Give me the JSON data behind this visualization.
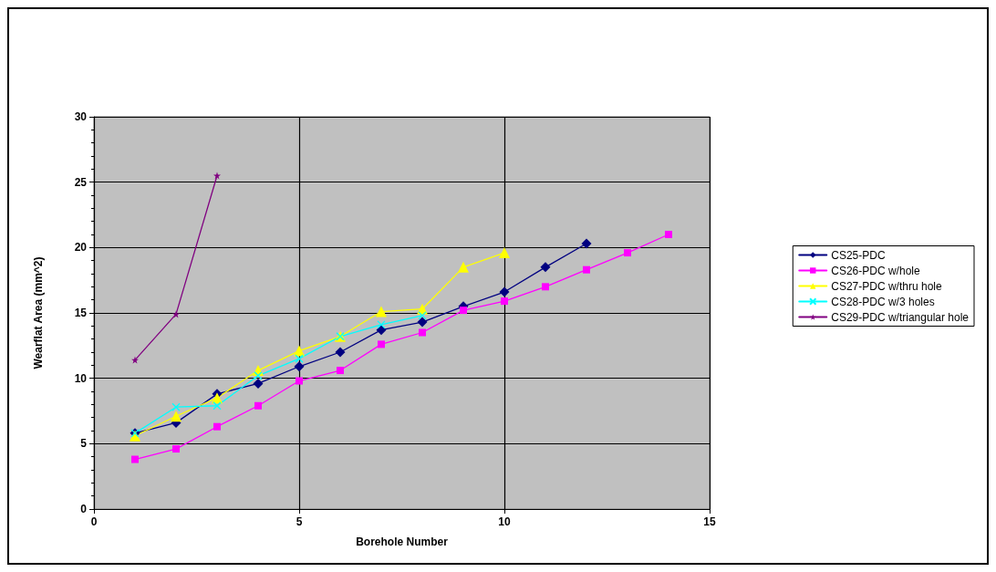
{
  "chart_data": {
    "type": "line",
    "xlabel": "Borehole Number",
    "ylabel": "Wearflat Area (mm^2)",
    "xlim": [
      0,
      15
    ],
    "xticks": [
      0,
      5,
      10,
      15
    ],
    "ylim": [
      0,
      30
    ],
    "yticks": [
      0,
      5,
      10,
      15,
      20,
      25,
      30
    ],
    "grid": true,
    "legend": "right",
    "line_style": "solid",
    "series": [
      {
        "name": "CS25-PDC",
        "color": "#000080",
        "marker": "diamond",
        "x": [
          1,
          2,
          3,
          4,
          5,
          6,
          7,
          8,
          9,
          10,
          11,
          12
        ],
        "values": [
          5.8,
          6.6,
          8.8,
          9.6,
          10.9,
          12.0,
          13.7,
          14.3,
          15.5,
          16.6,
          18.5,
          20.3
        ]
      },
      {
        "name": "CS26-PDC w/hole",
        "color": "#ff00ff",
        "marker": "square",
        "x": [
          1,
          2,
          3,
          4,
          5,
          6,
          7,
          8,
          9,
          10,
          11,
          12,
          13,
          14
        ],
        "values": [
          3.8,
          4.6,
          6.3,
          7.9,
          9.8,
          10.6,
          12.6,
          13.5,
          15.2,
          15.9,
          17.0,
          18.3,
          19.6,
          21.0
        ]
      },
      {
        "name": "CS27-PDC w/thru hole",
        "color": "#ffff00",
        "marker": "triangle",
        "x": [
          1,
          2,
          3,
          4,
          5,
          6,
          7,
          8,
          9,
          10
        ],
        "values": [
          5.6,
          7.1,
          8.5,
          10.6,
          12.1,
          13.2,
          15.1,
          15.3,
          18.5,
          19.6
        ]
      },
      {
        "name": "CS28-PDC w/3 holes",
        "color": "#00ffff",
        "marker": "cross",
        "x": [
          1,
          2,
          3,
          4,
          5,
          6,
          7,
          8
        ],
        "values": [
          5.8,
          7.8,
          7.9,
          10.2,
          11.5,
          13.2,
          14.1,
          14.8
        ]
      },
      {
        "name": "CS29-PDC w/triangular hole",
        "color": "#800080",
        "marker": "star",
        "x": [
          1,
          2,
          3
        ],
        "values": [
          11.4,
          14.9,
          25.5
        ]
      }
    ]
  }
}
